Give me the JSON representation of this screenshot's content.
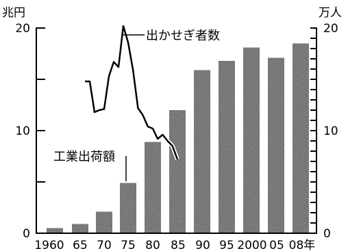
{
  "chart_data": {
    "type": "bar",
    "title": "",
    "categories": [
      "1960",
      "65",
      "70",
      "75",
      "80",
      "85",
      "90",
      "95",
      "2000",
      "05",
      "08年"
    ],
    "left_axis": {
      "unit": "兆円",
      "ylim": [
        0,
        20
      ],
      "ticks": [
        "0",
        "10",
        "20"
      ]
    },
    "right_axis": {
      "unit": "万人",
      "ylim": [
        0,
        20
      ],
      "ticks": [
        "0",
        "10",
        "20"
      ]
    },
    "series": [
      {
        "name": "工業出荷額",
        "kind": "bar",
        "axis": "left",
        "x": [
          1960,
          1965,
          1970,
          1975,
          1980,
          1985,
          1990,
          1995,
          2000,
          2005,
          2008
        ],
        "values": [
          0.5,
          0.9,
          2.1,
          4.9,
          8.9,
          12.0,
          15.9,
          16.8,
          18.1,
          17.1,
          18.5
        ]
      },
      {
        "name": "出かせぎ者数",
        "kind": "line",
        "axis": "right",
        "x": [
          1966,
          1967,
          1968,
          1969,
          1970,
          1971,
          1972,
          1973,
          1974,
          1975,
          1976,
          1977,
          1978,
          1979,
          1980,
          1981,
          1982,
          1983,
          1984,
          1985
        ],
        "values": [
          14.8,
          14.8,
          11.8,
          12.0,
          12.1,
          15.3,
          16.7,
          16.2,
          20.2,
          18.6,
          15.9,
          12.2,
          11.5,
          10.4,
          10.2,
          9.2,
          9.6,
          9.0,
          8.5,
          7.2
        ]
      }
    ],
    "annotations": [
      "出かせぎ者数",
      "工業出荷額"
    ]
  },
  "colors": {
    "bar_fill": "#2a2a2a",
    "line": "#000000",
    "background": "#ffffff"
  }
}
